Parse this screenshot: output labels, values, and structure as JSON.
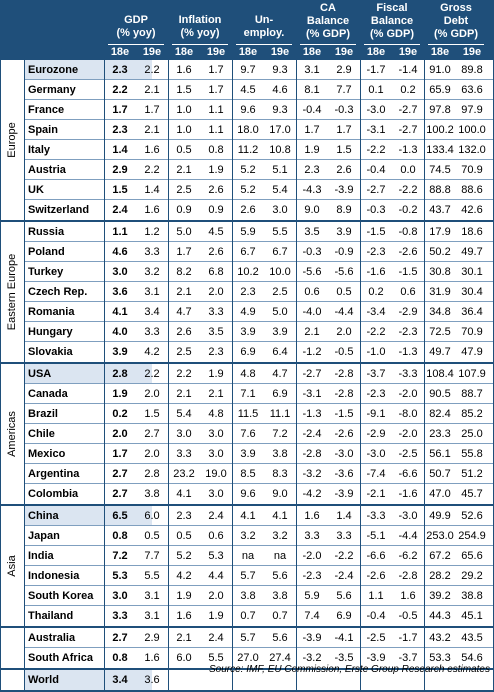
{
  "header": {
    "cols": [
      "GDP\n(% yoy)",
      "Inflation\n(% yoy)",
      "Un-\nemploy.",
      "CA\nBalance\n(% GDP)",
      "Fiscal\nBalance\n(% GDP)",
      "Gross\nDebt\n(% GDP)"
    ],
    "col_lines": [
      [
        "GDP",
        "(% yoy)"
      ],
      [
        "Inflation",
        "(% yoy)"
      ],
      [
        "Un-",
        "employ."
      ],
      [
        "CA",
        "Balance",
        "(% GDP)"
      ],
      [
        "Fiscal",
        "Balance",
        "(% GDP)"
      ],
      [
        "Gross",
        "Debt",
        "(% GDP)"
      ]
    ],
    "sub": [
      "18e",
      "19e"
    ]
  },
  "groups": [
    {
      "region": "Europe",
      "rows": [
        {
          "name": "Eurozone",
          "hl": true,
          "v": [
            "2.3",
            "2.2",
            "1.6",
            "1.7",
            "9.7",
            "9.3",
            "3.1",
            "2.9",
            "-1.7",
            "-1.4",
            "91.0",
            "89.8"
          ]
        },
        {
          "name": "Germany",
          "v": [
            "2.2",
            "2.1",
            "1.5",
            "1.7",
            "4.5",
            "4.6",
            "8.1",
            "7.7",
            "0.1",
            "0.2",
            "65.9",
            "63.6"
          ]
        },
        {
          "name": "France",
          "v": [
            "1.7",
            "1.7",
            "1.0",
            "1.1",
            "9.6",
            "9.3",
            "-0.4",
            "-0.3",
            "-3.0",
            "-2.7",
            "97.8",
            "97.9"
          ]
        },
        {
          "name": "Spain",
          "v": [
            "2.3",
            "2.1",
            "1.0",
            "1.1",
            "18.0",
            "17.0",
            "1.7",
            "1.7",
            "-3.1",
            "-2.7",
            "100.2",
            "100.0"
          ]
        },
        {
          "name": "Italy",
          "v": [
            "1.4",
            "1.6",
            "0.5",
            "0.8",
            "11.2",
            "10.8",
            "1.9",
            "1.5",
            "-2.2",
            "-1.3",
            "133.4",
            "132.0"
          ]
        },
        {
          "name": "Austria",
          "v": [
            "2.9",
            "2.2",
            "2.1",
            "1.9",
            "5.2",
            "5.1",
            "2.3",
            "2.6",
            "-0.4",
            "0.0",
            "74.5",
            "70.9"
          ]
        },
        {
          "name": "UK",
          "v": [
            "1.5",
            "1.4",
            "2.5",
            "2.6",
            "5.2",
            "5.4",
            "-4.3",
            "-3.9",
            "-2.7",
            "-2.2",
            "88.8",
            "88.6"
          ]
        },
        {
          "name": "Switzerland",
          "v": [
            "2.4",
            "1.6",
            "0.9",
            "0.9",
            "2.6",
            "3.0",
            "9.0",
            "8.9",
            "-0.3",
            "-0.2",
            "43.7",
            "42.6"
          ]
        }
      ]
    },
    {
      "region": "Eastern Europe",
      "rows": [
        {
          "name": "Russia",
          "v": [
            "1.1",
            "1.2",
            "5.0",
            "4.5",
            "5.9",
            "5.5",
            "3.5",
            "3.9",
            "-1.5",
            "-0.8",
            "17.9",
            "18.6"
          ]
        },
        {
          "name": "Poland",
          "v": [
            "4.6",
            "3.3",
            "1.7",
            "2.6",
            "6.7",
            "6.7",
            "-0.3",
            "-0.9",
            "-2.3",
            "-2.6",
            "50.2",
            "49.7"
          ]
        },
        {
          "name": "Turkey",
          "v": [
            "3.0",
            "3.2",
            "8.2",
            "6.8",
            "10.2",
            "10.0",
            "-5.6",
            "-5.6",
            "-1.6",
            "-1.5",
            "30.8",
            "30.1"
          ]
        },
        {
          "name": "Czech Rep.",
          "v": [
            "3.6",
            "3.1",
            "2.1",
            "2.0",
            "2.3",
            "2.5",
            "0.6",
            "0.5",
            "0.2",
            "0.6",
            "31.9",
            "30.4"
          ]
        },
        {
          "name": "Romania",
          "v": [
            "4.1",
            "3.4",
            "4.7",
            "3.3",
            "4.9",
            "5.0",
            "-4.0",
            "-4.4",
            "-3.4",
            "-2.9",
            "34.8",
            "36.4"
          ]
        },
        {
          "name": "Hungary",
          "v": [
            "4.0",
            "3.3",
            "2.6",
            "3.5",
            "3.9",
            "3.9",
            "2.1",
            "2.0",
            "-2.2",
            "-2.3",
            "72.5",
            "70.9"
          ]
        },
        {
          "name": "Slovakia",
          "v": [
            "3.9",
            "4.2",
            "2.5",
            "2.3",
            "6.9",
            "6.4",
            "-1.2",
            "-0.5",
            "-1.0",
            "-1.3",
            "49.7",
            "47.9"
          ]
        }
      ]
    },
    {
      "region": "Americas",
      "rows": [
        {
          "name": "USA",
          "hl": true,
          "v": [
            "2.8",
            "2.2",
            "2.2",
            "1.9",
            "4.8",
            "4.7",
            "-2.7",
            "-2.8",
            "-3.7",
            "-3.3",
            "108.4",
            "107.9"
          ]
        },
        {
          "name": "Canada",
          "v": [
            "1.9",
            "2.0",
            "2.1",
            "2.1",
            "7.1",
            "6.9",
            "-3.1",
            "-2.8",
            "-2.3",
            "-2.0",
            "90.5",
            "88.7"
          ]
        },
        {
          "name": "Brazil",
          "v": [
            "0.2",
            "1.5",
            "5.4",
            "4.8",
            "11.5",
            "11.1",
            "-1.3",
            "-1.5",
            "-9.1",
            "-8.0",
            "82.4",
            "85.2"
          ]
        },
        {
          "name": "Chile",
          "v": [
            "2.0",
            "2.7",
            "3.0",
            "3.0",
            "7.6",
            "7.2",
            "-2.4",
            "-2.6",
            "-2.9",
            "-2.0",
            "23.3",
            "25.0"
          ]
        },
        {
          "name": "Mexico",
          "v": [
            "1.7",
            "2.0",
            "3.3",
            "3.0",
            "3.9",
            "3.8",
            "-2.8",
            "-3.0",
            "-3.0",
            "-2.5",
            "56.1",
            "55.8"
          ]
        },
        {
          "name": "Argentina",
          "v": [
            "2.7",
            "2.8",
            "23.2",
            "19.0",
            "8.5",
            "8.3",
            "-3.2",
            "-3.6",
            "-7.4",
            "-6.6",
            "50.7",
            "51.2"
          ]
        },
        {
          "name": "Colombia",
          "v": [
            "2.7",
            "3.8",
            "4.1",
            "3.0",
            "9.6",
            "9.0",
            "-4.2",
            "-3.9",
            "-2.1",
            "-1.6",
            "47.0",
            "45.7"
          ]
        }
      ]
    },
    {
      "region": "Asia",
      "rows": [
        {
          "name": "China",
          "hl": true,
          "v": [
            "6.5",
            "6.0",
            "2.3",
            "2.4",
            "4.1",
            "4.1",
            "1.6",
            "1.4",
            "-3.3",
            "-3.0",
            "49.9",
            "52.6"
          ]
        },
        {
          "name": "Japan",
          "v": [
            "0.8",
            "0.5",
            "0.5",
            "0.6",
            "3.2",
            "3.2",
            "3.3",
            "3.3",
            "-5.1",
            "-4.4",
            "253.0",
            "254.9"
          ]
        },
        {
          "name": "India",
          "v": [
            "7.2",
            "7.7",
            "5.2",
            "5.3",
            "na",
            "na",
            "-2.0",
            "-2.2",
            "-6.6",
            "-6.2",
            "67.2",
            "65.6"
          ]
        },
        {
          "name": "Indonesia",
          "v": [
            "5.3",
            "5.5",
            "4.2",
            "4.4",
            "5.7",
            "5.6",
            "-2.3",
            "-2.4",
            "-2.6",
            "-2.8",
            "28.2",
            "29.2"
          ]
        },
        {
          "name": "South Korea",
          "v": [
            "3.0",
            "3.1",
            "1.9",
            "2.0",
            "3.8",
            "3.8",
            "5.9",
            "5.6",
            "1.1",
            "1.6",
            "39.2",
            "38.8"
          ]
        },
        {
          "name": "Thailand",
          "v": [
            "3.3",
            "3.1",
            "1.6",
            "1.9",
            "0.7",
            "0.7",
            "7.4",
            "6.9",
            "-0.4",
            "-0.5",
            "44.3",
            "45.1"
          ]
        }
      ]
    },
    {
      "region": "",
      "rows": [
        {
          "name": "Australia",
          "v": [
            "2.7",
            "2.9",
            "2.1",
            "2.4",
            "5.7",
            "5.6",
            "-3.9",
            "-4.1",
            "-2.5",
            "-1.7",
            "43.2",
            "43.5"
          ]
        },
        {
          "name": "South Africa",
          "v": [
            "0.8",
            "1.6",
            "6.0",
            "5.5",
            "27.0",
            "27.4",
            "-3.2",
            "-3.5",
            "-3.9",
            "-3.7",
            "53.3",
            "54.6"
          ]
        }
      ]
    },
    {
      "region": "",
      "rows": [
        {
          "name": "World",
          "hl": true,
          "v": [
            "3.4",
            "3.6",
            "",
            "",
            "",
            "",
            "",
            "",
            "",
            "",
            "",
            ""
          ]
        }
      ]
    }
  ],
  "source": "Source: IMF, EU Commission, Erste Group Research estimates"
}
